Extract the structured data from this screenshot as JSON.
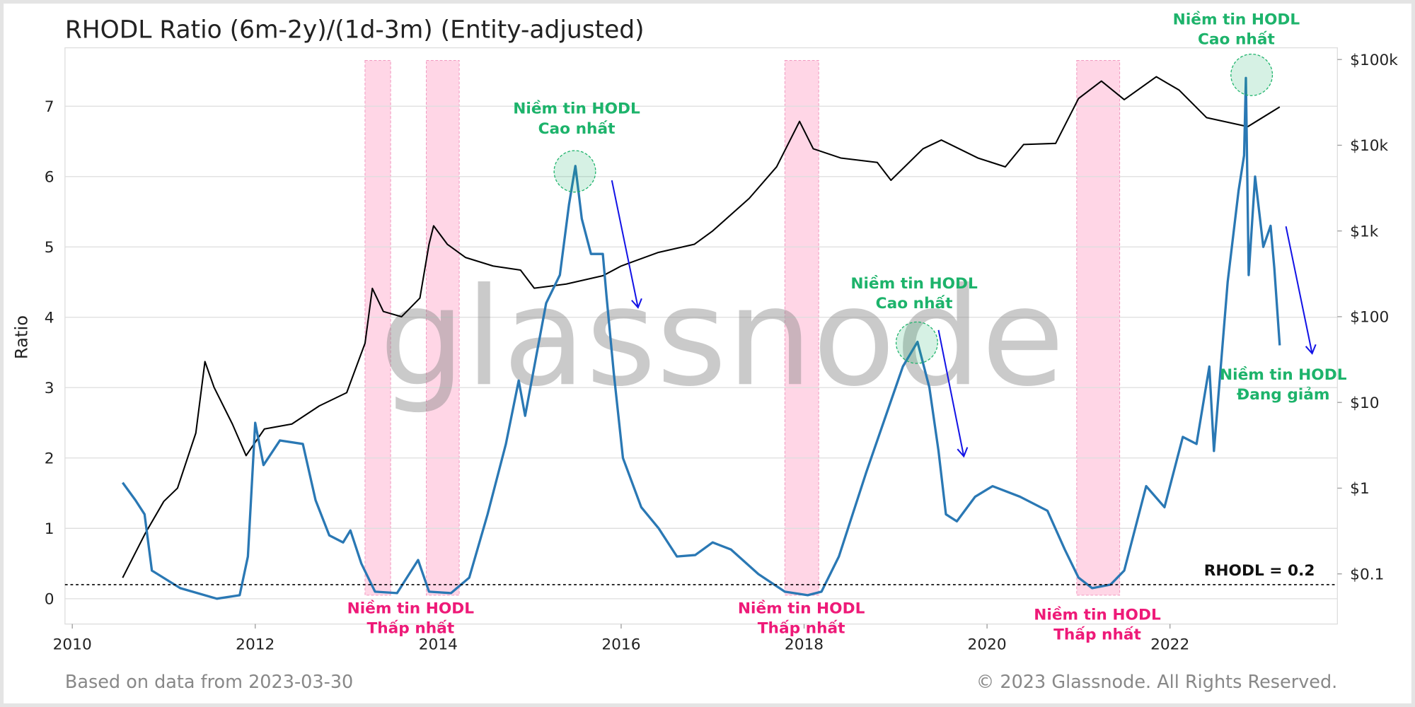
{
  "chart_data": {
    "type": "line",
    "title": "RHODL Ratio (6m-2y)/(1d-3m) (Entity-adjusted)",
    "y_label": "Ratio",
    "watermark": "glassnode",
    "footer_left": "Based on data from 2023-03-30",
    "footer_right": "© 2023 Glassnode. All Rights Reserved.",
    "xlim": [
      2009.92,
      2023.83
    ],
    "xticks": [
      2010,
      2012,
      2014,
      2016,
      2018,
      2020,
      2022
    ],
    "ylim": [
      -0.36,
      7.83
    ],
    "yticks": [
      0,
      1,
      2,
      3,
      4,
      5,
      6,
      7
    ],
    "y2lim": [
      0.026,
      137000
    ],
    "y2scale": "log",
    "y2ticks": [
      {
        "value": 0.1,
        "label": "$0.1"
      },
      {
        "value": 1,
        "label": "$1"
      },
      {
        "value": 10,
        "label": "$10"
      },
      {
        "value": 100,
        "label": "$100"
      },
      {
        "value": 1000,
        "label": "$1k"
      },
      {
        "value": 10000,
        "label": "$10k"
      },
      {
        "value": 100000,
        "label": "$100k"
      }
    ],
    "grid": true,
    "series": [
      {
        "name": "RHODL Ratio",
        "color": "#2a78b4",
        "x": [
          2010.55,
          2010.69,
          2010.79,
          2010.87,
          2011.18,
          2011.58,
          2011.83,
          2011.92,
          2012.0,
          2012.09,
          2012.27,
          2012.52,
          2012.66,
          2012.81,
          2012.96,
          2013.04,
          2013.16,
          2013.31,
          2013.55,
          2013.78,
          2013.9,
          2014.14,
          2014.34,
          2014.54,
          2014.74,
          2014.88,
          2014.95,
          2015.08,
          2015.18,
          2015.33,
          2015.43,
          2015.5,
          2015.57,
          2015.67,
          2015.8,
          2015.84,
          2015.92,
          2016.02,
          2016.22,
          2016.41,
          2016.61,
          2016.81,
          2017.0,
          2017.2,
          2017.5,
          2017.79,
          2018.04,
          2018.19,
          2018.38,
          2018.68,
          2019.08,
          2019.24,
          2019.37,
          2019.47,
          2019.55,
          2019.67,
          2019.87,
          2020.06,
          2020.36,
          2020.66,
          2020.85,
          2021.0,
          2021.15,
          2021.35,
          2021.5,
          2021.74,
          2021.94,
          2022.14,
          2022.29,
          2022.43,
          2022.48,
          2022.63,
          2022.75,
          2022.81,
          2022.83,
          2022.86,
          2022.93,
          2023.02,
          2023.1,
          2023.14,
          2023.2
        ],
        "values": [
          1.65,
          1.4,
          1.2,
          0.4,
          0.15,
          0.0,
          0.05,
          0.6,
          2.5,
          1.9,
          2.25,
          2.2,
          1.4,
          0.9,
          0.8,
          0.97,
          0.5,
          0.1,
          0.08,
          0.55,
          0.1,
          0.08,
          0.3,
          1.2,
          2.2,
          3.1,
          2.6,
          3.5,
          4.2,
          4.6,
          5.6,
          6.15,
          5.4,
          4.9,
          4.9,
          4.3,
          3.2,
          2.0,
          1.3,
          1.0,
          0.6,
          0.62,
          0.8,
          0.7,
          0.35,
          0.1,
          0.05,
          0.1,
          0.6,
          1.8,
          3.3,
          3.65,
          3.0,
          2.1,
          1.2,
          1.1,
          1.45,
          1.6,
          1.45,
          1.25,
          0.7,
          0.3,
          0.15,
          0.2,
          0.4,
          1.6,
          1.3,
          2.3,
          2.2,
          3.3,
          2.1,
          4.5,
          5.8,
          6.3,
          7.4,
          4.6,
          6.0,
          5.0,
          5.3,
          4.7,
          3.6
        ]
      },
      {
        "name": "Price",
        "color": "#000000",
        "axis": "y2",
        "x": [
          2010.55,
          2010.8,
          2011.0,
          2011.15,
          2011.35,
          2011.45,
          2011.55,
          2011.75,
          2011.9,
          2012.1,
          2012.4,
          2012.7,
          2013.0,
          2013.2,
          2013.28,
          2013.4,
          2013.6,
          2013.8,
          2013.9,
          2013.95,
          2014.1,
          2014.3,
          2014.6,
          2014.9,
          2015.05,
          2015.4,
          2015.8,
          2016.0,
          2016.4,
          2016.8,
          2017.0,
          2017.4,
          2017.7,
          2017.95,
          2018.1,
          2018.4,
          2018.8,
          2018.95,
          2019.3,
          2019.5,
          2019.9,
          2020.2,
          2020.4,
          2020.75,
          2021.0,
          2021.25,
          2021.5,
          2021.85,
          2022.1,
          2022.4,
          2022.85,
          2023.2
        ],
        "values": [
          0.09,
          0.3,
          0.7,
          1,
          4.4,
          30,
          15,
          5.6,
          2.4,
          4.9,
          5.6,
          9.1,
          13,
          49,
          214,
          115,
          100,
          165,
          700,
          1150,
          700,
          490,
          390,
          350,
          215,
          240,
          300,
          390,
          560,
          700,
          1000,
          2400,
          5600,
          19000,
          9100,
          7100,
          6300,
          3900,
          9100,
          11500,
          7100,
          5600,
          10200,
          10500,
          35000,
          56000,
          34000,
          63000,
          44000,
          21000,
          16500,
          28000
        ]
      }
    ],
    "shaded_regions": {
      "color": "#ffd6e6",
      "ranges": [
        [
          2013.2,
          2013.48
        ],
        [
          2013.87,
          2014.23
        ],
        [
          2017.79,
          2018.16
        ],
        [
          2020.98,
          2021.45
        ]
      ]
    },
    "reference_line": {
      "value": 0.2,
      "label": "RHODL = 0.2"
    },
    "annotations": [
      {
        "lines": [
          "Niềm tin HODL",
          "Cao nhất"
        ],
        "color": "#1db36b"
      },
      {
        "lines": [
          "Niềm tin HODL",
          "Cao nhất"
        ],
        "color": "#1db36b"
      },
      {
        "lines": [
          "Niềm tin HODL",
          "Cao nhất"
        ],
        "color": "#1db36b"
      },
      {
        "lines": [
          "Niềm tin HODL",
          "Đang giảm"
        ],
        "color": "#1db36b"
      },
      {
        "lines": [
          "Niềm tin HODL",
          "Thấp nhất"
        ],
        "color": "#ee1a78"
      },
      {
        "lines": [
          "Niềm tin HODL",
          "Thấp nhất"
        ],
        "color": "#ee1a78"
      },
      {
        "lines": [
          "Niềm tin HODL",
          "Thấp nhất"
        ],
        "color": "#ee1a78"
      }
    ]
  }
}
